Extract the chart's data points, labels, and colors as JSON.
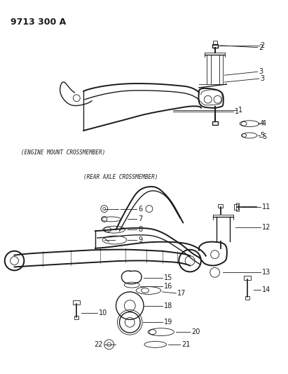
{
  "title": "9713 300 A",
  "background_color": "#ffffff",
  "line_color": "#1a1a1a",
  "fig_width": 4.11,
  "fig_height": 5.33,
  "dpi": 100,
  "caption_engine_mount": "(ENGINE MOUNT CROSSMEMBER)",
  "caption_rear_axle": "(REAR AXLE CROSSMEMBER)"
}
